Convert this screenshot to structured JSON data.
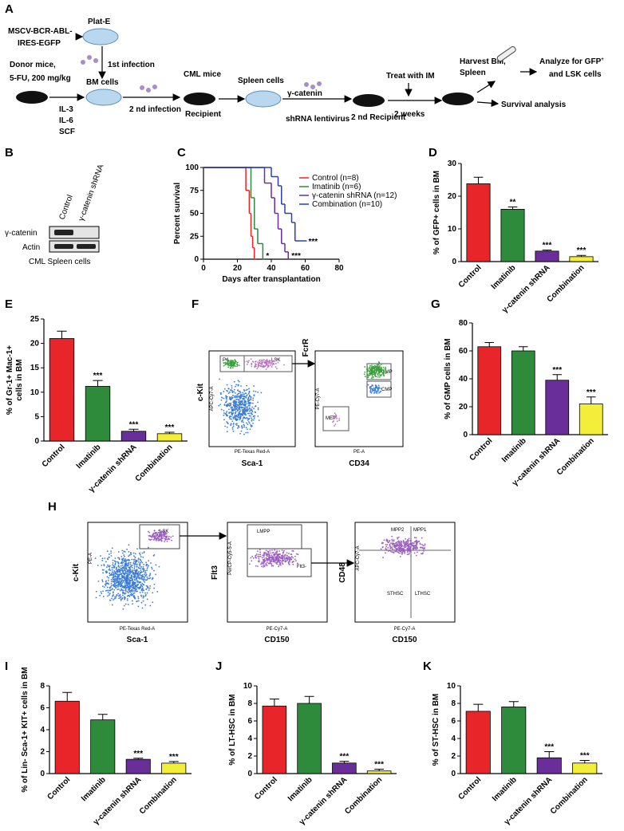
{
  "panel_labels": [
    "A",
    "B",
    "C",
    "D",
    "E",
    "F",
    "G",
    "H",
    "I",
    "J",
    "K"
  ],
  "panel_a": {
    "vector": [
      "MSCV-BCR-ABL-",
      "IRES-EGFP"
    ],
    "plat_e": "Plat-E",
    "first_infection": "1st infection",
    "donor": [
      "Donor mice,",
      "5-FU, 200 mg/kg"
    ],
    "bm_cells": "BM cells",
    "cytokines": [
      "IL-3",
      "IL-6",
      "SCF"
    ],
    "second_infection": "2 nd infection",
    "cml_mice": "CML mice",
    "recipient": "Recipient",
    "spleen_cells": "Spleen cells",
    "lentivirus": [
      "γ-catenin",
      "shRNA lentivirus"
    ],
    "second_recipient": "2 nd Recipient",
    "treat": "Treat with IM",
    "weeks": "2 weeks",
    "harvest": [
      "Harvest BM,",
      "Spleen"
    ],
    "analyze": [
      "Analyze for GFP",
      "+",
      "and LSK cells"
    ],
    "survival": "Survival analysis"
  },
  "panel_b": {
    "lanes": [
      "Control",
      "γ-catenin shRNA"
    ],
    "rows": [
      "γ-catenin",
      "Actin"
    ],
    "caption": "CML Spleen cells"
  },
  "panel_f": {
    "left_y": "c-Kit",
    "left_x": "Sca-1",
    "right_y": "FcrR",
    "right_x": "CD34",
    "gates": [
      "P4",
      "LSK",
      "GMP",
      "CMP",
      "MEP"
    ],
    "channels": [
      "APC-Cy7-A",
      "PE-Texas Red-A",
      "PE-Cy7-A",
      "PE-A"
    ]
  },
  "panel_h": {
    "axes_y": [
      "c-Kit",
      "Flt3",
      "CD48"
    ],
    "axes_x": [
      "Sca-1",
      "CD150",
      "CD150"
    ],
    "gates": [
      "LSK",
      "LMPP",
      "Flt3-",
      "MPP2",
      "MPP1",
      "STHSC",
      "LTHSC"
    ],
    "channels_y": [
      "PE-A",
      "PerCP-Cy5-5-A",
      "APC-Cy7-A"
    ],
    "channels_x": [
      "PE-Texas Red-A",
      "PE-Cy7-A",
      "PE-Cy7-A"
    ]
  },
  "chart_data": [
    {
      "type": "survival",
      "ylabel": "Percent survival",
      "xlabel": "Days after transplantation",
      "xlim": [
        0,
        80
      ],
      "xticks": [
        0,
        20,
        40,
        60,
        80
      ],
      "ylim": [
        0,
        100
      ],
      "yticks": [
        0,
        25,
        50,
        75,
        100
      ],
      "series": [
        {
          "name": "Control (n=8)",
          "color": "#e8262a",
          "x": [
            0,
            25,
            27,
            28,
            29,
            30
          ],
          "values": [
            100,
            75,
            50,
            25,
            12.5,
            0
          ]
        },
        {
          "name": "Imatinib (n=6)",
          "color": "#2e8b3c",
          "x": [
            0,
            28,
            30,
            32,
            35
          ],
          "values": [
            100,
            67,
            33,
            17,
            0
          ],
          "annotation": "*"
        },
        {
          "name": "γ-catenin shRNA (n=12)",
          "color": "#6a2e9a",
          "x": [
            0,
            36,
            40,
            42,
            44,
            46,
            48,
            50
          ],
          "values": [
            100,
            83,
            67,
            50,
            33,
            17,
            8,
            0
          ],
          "annotation": "***"
        },
        {
          "name": "Combination (n=10)",
          "color": "#2a3fb0",
          "x": [
            0,
            40,
            44,
            46,
            48,
            52,
            54,
            60
          ],
          "values": [
            100,
            90,
            80,
            60,
            50,
            40,
            20,
            20
          ],
          "annotation": "***"
        }
      ]
    },
    {
      "type": "bar",
      "ylabel": "% of GFP+ cells in BM",
      "categories": [
        "Control",
        "Imatinib",
        "γ-catenin shRNA",
        "Combination"
      ],
      "colors": [
        "#e8262a",
        "#2e8b3c",
        "#6a2e9a",
        "#f3ee3a"
      ],
      "values": [
        23.8,
        16,
        3.2,
        1.5
      ],
      "errors": [
        2,
        0.7,
        0.3,
        0.4
      ],
      "significance": [
        null,
        "**",
        "***",
        "***"
      ],
      "ylim": [
        0,
        30
      ],
      "yticks": [
        0,
        10,
        20,
        30
      ]
    },
    {
      "type": "bar",
      "ylabel": [
        "% of Gr-1+ Mac-1+",
        "cells in BM"
      ],
      "categories": [
        "Control",
        "Imatinib",
        "γ-catenin shRNA",
        "Combination"
      ],
      "colors": [
        "#e8262a",
        "#2e8b3c",
        "#6a2e9a",
        "#f3ee3a"
      ],
      "values": [
        21,
        11.2,
        2,
        1.5
      ],
      "errors": [
        1.5,
        1.2,
        0.4,
        0.3
      ],
      "significance": [
        null,
        "***",
        "***",
        "***"
      ],
      "ylim": [
        0,
        25
      ],
      "yticks": [
        0,
        5,
        10,
        15,
        20,
        25
      ]
    },
    {
      "type": "bar",
      "ylabel": "% of GMP cells in BM",
      "categories": [
        "Control",
        "Imatinib",
        "γ-catenin shRNA",
        "Combination"
      ],
      "colors": [
        "#e8262a",
        "#2e8b3c",
        "#6a2e9a",
        "#f3ee3a"
      ],
      "values": [
        63,
        60,
        39,
        22
      ],
      "errors": [
        3,
        3,
        4,
        5
      ],
      "significance": [
        null,
        null,
        "***",
        "***"
      ],
      "ylim": [
        0,
        80
      ],
      "yticks": [
        0,
        20,
        40,
        60,
        80
      ]
    },
    {
      "type": "bar",
      "ylabel": "% of Lin- Sca-1+ KIT+ cells in BM",
      "categories": [
        "Control",
        "Imatinib",
        "γ-catenin shRNA",
        "Combination"
      ],
      "colors": [
        "#e8262a",
        "#2e8b3c",
        "#6a2e9a",
        "#f3ee3a"
      ],
      "values": [
        6.6,
        4.9,
        1.3,
        0.95
      ],
      "errors": [
        0.8,
        0.5,
        0.1,
        0.15
      ],
      "significance": [
        null,
        null,
        "***",
        "***"
      ],
      "ylim": [
        0,
        8
      ],
      "yticks": [
        0,
        2,
        4,
        6,
        8
      ]
    },
    {
      "type": "bar",
      "ylabel": "% of LT-HSC in BM",
      "categories": [
        "Control",
        "Imatinib",
        "γ-catenin shRNA",
        "Combination"
      ],
      "colors": [
        "#e8262a",
        "#2e8b3c",
        "#6a2e9a",
        "#f3ee3a"
      ],
      "values": [
        7.7,
        8,
        1.2,
        0.3
      ],
      "errors": [
        0.8,
        0.8,
        0.2,
        0.2
      ],
      "significance": [
        null,
        null,
        "***",
        "***"
      ],
      "ylim": [
        0,
        10
      ],
      "yticks": [
        0,
        2,
        4,
        6,
        8,
        10
      ]
    },
    {
      "type": "bar",
      "ylabel": "% of ST-HSC in BM",
      "categories": [
        "Control",
        "Imatinib",
        "γ-catenin shRNA",
        "Combination"
      ],
      "colors": [
        "#e8262a",
        "#2e8b3c",
        "#6a2e9a",
        "#f3ee3a"
      ],
      "values": [
        7.1,
        7.6,
        1.8,
        1.2
      ],
      "errors": [
        0.8,
        0.6,
        0.7,
        0.3
      ],
      "significance": [
        null,
        null,
        "***",
        "***"
      ],
      "ylim": [
        0,
        10
      ],
      "yticks": [
        0,
        2,
        4,
        6,
        8,
        10
      ]
    }
  ]
}
